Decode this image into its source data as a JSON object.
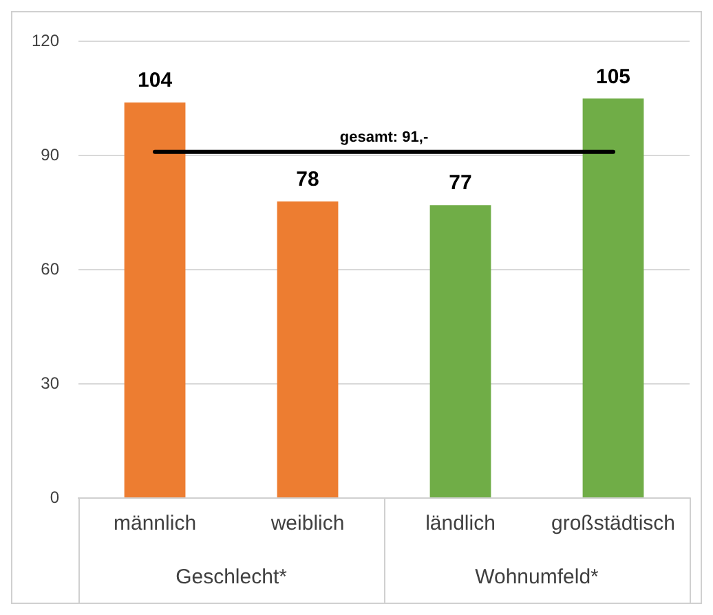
{
  "chart_data": {
    "type": "bar",
    "categories": [
      "männlich",
      "weiblich",
      "ländlich",
      "großstädtisch"
    ],
    "values": [
      104,
      78,
      77,
      105
    ],
    "colors": [
      "#ed7d31",
      "#ed7d31",
      "#70ad47",
      "#70ad47"
    ],
    "ylim": [
      0,
      120
    ],
    "yticks": [
      0,
      30,
      60,
      90,
      120
    ],
    "grid": "y",
    "legend": false,
    "data_labels": true,
    "ref_lines": [
      {
        "axis": "y",
        "value": 91,
        "label": "gesamt: 91,-",
        "color": "#000000"
      }
    ],
    "annotations": [
      "Geschlecht*",
      "Wohnumfeld*"
    ]
  }
}
